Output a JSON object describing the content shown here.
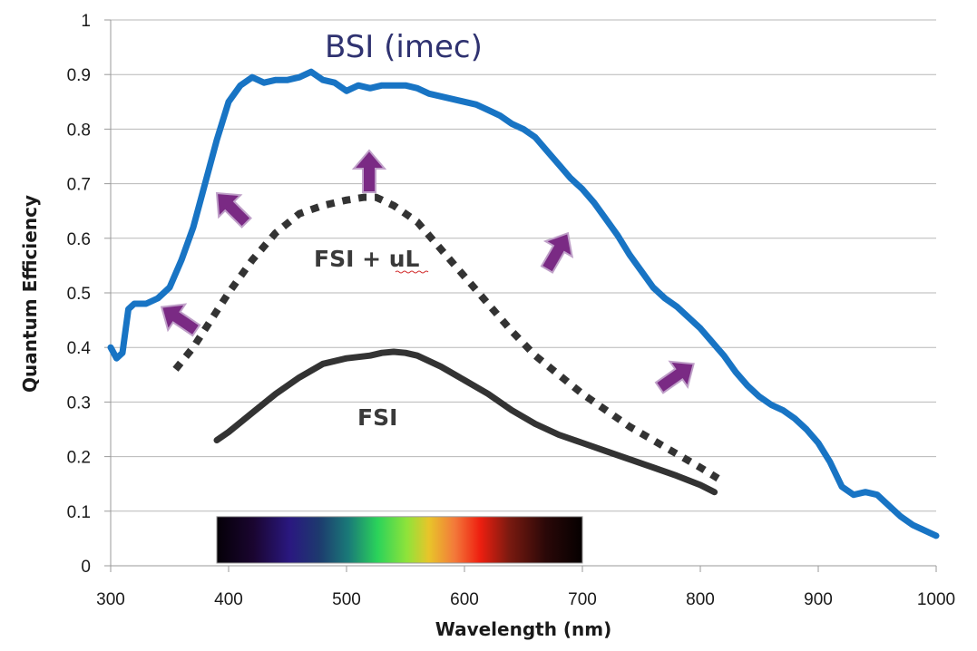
{
  "chart_data": {
    "type": "line",
    "xlabel": "Wavelength (nm)",
    "ylabel": "Quantum Efficiency",
    "xlim": [
      300,
      1000
    ],
    "ylim": [
      0,
      1
    ],
    "x_ticks": [
      "300",
      "400",
      "500",
      "600",
      "700",
      "800",
      "900",
      "1000"
    ],
    "y_ticks": [
      "0",
      "0.1",
      "0.2",
      "0.3",
      "0.4",
      "0.5",
      "0.6",
      "0.7",
      "0.8",
      "0.9",
      "1"
    ],
    "grid": true,
    "series": [
      {
        "name": "BSI (imec)",
        "color": "#1874c4",
        "style": "solid",
        "x": [
          300,
          305,
          310,
          315,
          320,
          330,
          340,
          350,
          360,
          370,
          380,
          390,
          400,
          410,
          420,
          430,
          440,
          450,
          460,
          470,
          480,
          490,
          500,
          510,
          520,
          530,
          540,
          550,
          560,
          570,
          580,
          590,
          600,
          610,
          620,
          630,
          640,
          650,
          660,
          670,
          680,
          690,
          700,
          710,
          720,
          730,
          740,
          750,
          760,
          770,
          780,
          790,
          800,
          810,
          820,
          830,
          840,
          850,
          860,
          870,
          880,
          890,
          900,
          910,
          920,
          930,
          940,
          950,
          960,
          970,
          980,
          990,
          1000
        ],
        "y": [
          0.4,
          0.38,
          0.39,
          0.47,
          0.48,
          0.48,
          0.49,
          0.51,
          0.56,
          0.62,
          0.7,
          0.78,
          0.85,
          0.88,
          0.895,
          0.885,
          0.89,
          0.89,
          0.895,
          0.905,
          0.89,
          0.885,
          0.87,
          0.88,
          0.875,
          0.88,
          0.88,
          0.88,
          0.875,
          0.865,
          0.86,
          0.855,
          0.85,
          0.845,
          0.835,
          0.825,
          0.81,
          0.8,
          0.785,
          0.76,
          0.735,
          0.71,
          0.69,
          0.665,
          0.635,
          0.605,
          0.57,
          0.54,
          0.51,
          0.49,
          0.475,
          0.455,
          0.435,
          0.41,
          0.385,
          0.355,
          0.33,
          0.31,
          0.295,
          0.285,
          0.27,
          0.25,
          0.225,
          0.19,
          0.145,
          0.13,
          0.135,
          0.13,
          0.11,
          0.09,
          0.075,
          0.065,
          0.055
        ]
      },
      {
        "name": "FSI + uL",
        "color": "#333333",
        "style": "dotted",
        "x": [
          355,
          370,
          385,
          400,
          420,
          440,
          460,
          480,
          500,
          515,
          525,
          540,
          560,
          580,
          600,
          620,
          640,
          660,
          680,
          700,
          720,
          740,
          760,
          780,
          800,
          815
        ],
        "y": [
          0.36,
          0.4,
          0.45,
          0.5,
          0.56,
          0.61,
          0.645,
          0.66,
          0.67,
          0.675,
          0.675,
          0.66,
          0.63,
          0.58,
          0.53,
          0.48,
          0.43,
          0.385,
          0.35,
          0.315,
          0.285,
          0.255,
          0.23,
          0.205,
          0.18,
          0.16
        ]
      },
      {
        "name": "FSI",
        "color": "#333333",
        "style": "solid",
        "x": [
          390,
          400,
          420,
          440,
          460,
          480,
          500,
          520,
          530,
          540,
          550,
          560,
          580,
          600,
          620,
          640,
          660,
          680,
          700,
          720,
          740,
          760,
          780,
          800,
          812
        ],
        "y": [
          0.23,
          0.245,
          0.28,
          0.315,
          0.345,
          0.37,
          0.38,
          0.385,
          0.39,
          0.392,
          0.39,
          0.385,
          0.365,
          0.34,
          0.315,
          0.285,
          0.26,
          0.24,
          0.225,
          0.21,
          0.195,
          0.18,
          0.165,
          0.148,
          0.135
        ]
      }
    ],
    "annotations": [
      "BSI (imec)",
      "FSI + uL",
      "FSI"
    ],
    "arrow_color": "#7a2a84",
    "spectrum_bar": {
      "x_range": [
        390,
        700
      ],
      "y_range": [
        0.005,
        0.09
      ]
    }
  }
}
